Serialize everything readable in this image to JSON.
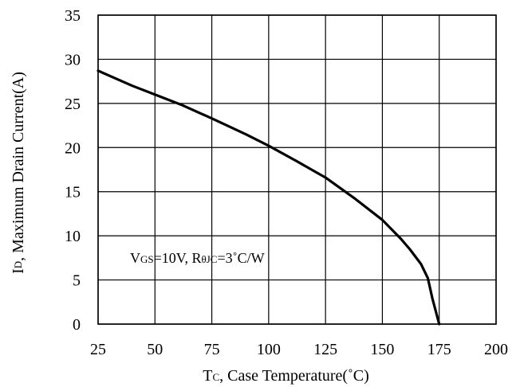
{
  "chart_data": {
    "type": "line",
    "title": "",
    "xlabel": {
      "main": "T",
      "sub": "C",
      "rest": ", Case Temperature(˚C)"
    },
    "ylabel": {
      "main": "I",
      "sub": "D",
      "rest": ", Maximum Drain Current(A)"
    },
    "xlim": [
      25,
      200
    ],
    "ylim": [
      0,
      35
    ],
    "xticks": [
      25,
      50,
      75,
      100,
      125,
      150,
      175,
      200
    ],
    "yticks": [
      0,
      5,
      10,
      15,
      20,
      25,
      30,
      35
    ],
    "grid": true,
    "series": [
      {
        "x": [
          25,
          40,
          50,
          62,
          75,
          90,
          100,
          112,
          125,
          138,
          150,
          158,
          162,
          167,
          170,
          172,
          175
        ],
        "y": [
          28.7,
          27.0,
          26.0,
          24.8,
          23.3,
          21.5,
          20.2,
          18.5,
          16.6,
          14.2,
          11.8,
          9.7,
          8.5,
          6.8,
          5.2,
          2.9,
          0
        ],
        "color": "#000000"
      }
    ],
    "annotations": [
      {
        "parts": [
          {
            "text": "V",
            "sub": false
          },
          {
            "text": "GS",
            "sub": true
          },
          {
            "text": "=10V, R",
            "sub": false
          },
          {
            "text": "θJC",
            "sub": true
          },
          {
            "text": "=3˚C/W",
            "sub": false
          }
        ]
      }
    ]
  }
}
